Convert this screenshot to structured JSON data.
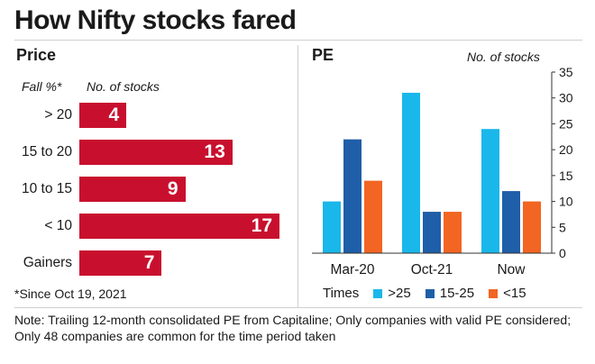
{
  "title": "How Nifty stocks fared",
  "price": {
    "section_title": "Price",
    "col1_header": "Fall %*",
    "col2_header": "No. of stocks",
    "footnote": "*Since Oct 19, 2021"
  },
  "pe": {
    "section_title": "PE",
    "axis_header": "No. of stocks",
    "legend_title": "Times"
  },
  "note": "Note: Trailing 12-month consolidated PE from Capitaline; Only companies with valid PE considered; Only 48 companies are common for the time period taken",
  "colors": {
    "red": "#c8102e",
    "light_blue": "#1ab7ea",
    "dark_blue": "#1f5ea8",
    "orange": "#f26522"
  },
  "chart_data": [
    {
      "type": "bar",
      "orientation": "horizontal",
      "title": "Price",
      "xlabel": "No. of stocks",
      "ylabel": "Fall %*",
      "categories": [
        "> 20",
        "15 to 20",
        "10 to 15",
        "< 10",
        "Gainers"
      ],
      "values": [
        4,
        13,
        9,
        17,
        7
      ],
      "xlim": [
        0,
        17
      ]
    },
    {
      "type": "bar",
      "title": "PE",
      "ylabel": "No. of stocks",
      "categories": [
        "Mar-20",
        "Oct-21",
        "Now"
      ],
      "series": [
        {
          "name": ">25",
          "values": [
            10,
            31,
            24
          ]
        },
        {
          "name": "15-25",
          "values": [
            22,
            8,
            12
          ]
        },
        {
          "name": "<15",
          "values": [
            14,
            8,
            10
          ]
        }
      ],
      "ylim": [
        0,
        35
      ],
      "yticks": [
        0,
        5,
        10,
        15,
        20,
        25,
        30,
        35
      ],
      "grid": false,
      "legend_title": "Times",
      "legend_position": "bottom"
    }
  ]
}
